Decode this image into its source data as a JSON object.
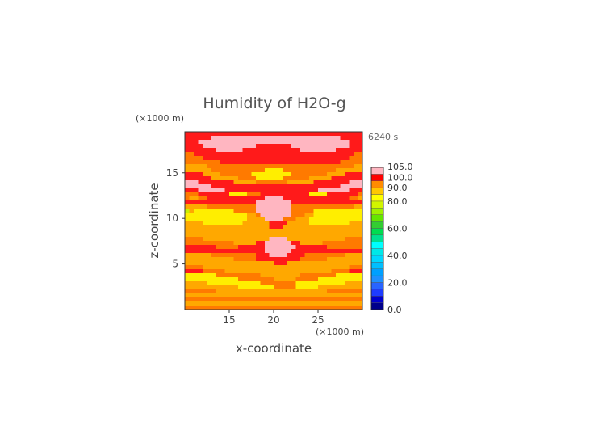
{
  "chart_data": {
    "type": "heatmap",
    "title": "Humidity of H2O-g",
    "time_label": "6240 s",
    "xlabel": "x-coordinate",
    "ylabel": "z-coordinate",
    "x_unit": "(×1000 m)",
    "y_unit": "(×1000 m)",
    "xlim": [
      10,
      30
    ],
    "ylim": [
      0,
      19.5
    ],
    "x_ticks": [
      "15",
      "20",
      "25"
    ],
    "y_ticks": [
      "5",
      "10",
      "15"
    ],
    "x_tick_values": [
      15,
      20,
      25
    ],
    "y_tick_values": [
      5,
      10,
      15
    ],
    "colorbar": {
      "labels": [
        "105.0",
        "100.0",
        "90.0",
        "80.0",
        "60.0",
        "40.0",
        "20.0",
        "0.0"
      ],
      "label_values": [
        105,
        100,
        90,
        80,
        60,
        40,
        20,
        0
      ],
      "range": [
        0,
        105
      ],
      "levels": [
        {
          "min": 0,
          "max": 5,
          "color": "#00008b"
        },
        {
          "min": 5,
          "max": 10,
          "color": "#0000cd"
        },
        {
          "min": 10,
          "max": 15,
          "color": "#1e3cff"
        },
        {
          "min": 15,
          "max": 20,
          "color": "#2864ff"
        },
        {
          "min": 20,
          "max": 25,
          "color": "#1e90ff"
        },
        {
          "min": 25,
          "max": 30,
          "color": "#00a0ff"
        },
        {
          "min": 30,
          "max": 35,
          "color": "#00bfff"
        },
        {
          "min": 35,
          "max": 40,
          "color": "#00d7ff"
        },
        {
          "min": 40,
          "max": 45,
          "color": "#00e8e8"
        },
        {
          "min": 45,
          "max": 50,
          "color": "#00ffff"
        },
        {
          "min": 50,
          "max": 55,
          "color": "#00e090"
        },
        {
          "min": 55,
          "max": 60,
          "color": "#00dc50"
        },
        {
          "min": 60,
          "max": 65,
          "color": "#32cd32"
        },
        {
          "min": 65,
          "max": 70,
          "color": "#64e600"
        },
        {
          "min": 70,
          "max": 75,
          "color": "#a0f000"
        },
        {
          "min": 75,
          "max": 80,
          "color": "#d2f500"
        },
        {
          "min": 80,
          "max": 85,
          "color": "#ffff00"
        },
        {
          "min": 85,
          "max": 90,
          "color": "#ffc800"
        },
        {
          "min": 90,
          "max": 95,
          "color": "#ff8c00"
        },
        {
          "min": 95,
          "max": 100,
          "color": "#ff0000"
        },
        {
          "min": 100,
          "max": 105,
          "color": "#ffb6c1"
        }
      ]
    },
    "cell_shades": {
      "ge100": "#ffb6c1",
      "95_100": "#ff1a1a",
      "90_95": "#ff7a00",
      "85_90": "#ffa800",
      "80_85": "#ffee00",
      "75_80": "#c8f000"
    },
    "grid_cols": 40,
    "grid_rows": 44,
    "humidity_rows_top_to_bottom": [
      "RRRRRRRRRRRRRRRRRRRRRRRRRRRRRRRRRRRRRRRR",
      "RRRRRRPPPPPPPPPPPPPPPPPPPPPPPPPPPPPRRRRR",
      "RRRPPPPPPPPPPPPPPPPPPPPPPPPPPPPPPPPPPRRR",
      "RRRRPPPPPPPPPPPPRRRRRRRRPPPPPPPPPPPPPRRR",
      "RRRRRRRPPPPPPRRRRRRRRRRRRRPPPPPPPPRRRRRR",
      "OORRRRRRRRRRRRRRRRRRRRRRRRRRRRRRRRRRRROO",
      "OOOORRRRRRRRRRRRRRRRRRRRRRRRRRRRRRRRROOO",
      "OOOOOOOORRRRRRRRRRRRRRRRRRRRRRRRRRROOOOO",
      "AAAAAOOOOOOOOOOOOOOOOOOOOOOOOOOOOOOOOOAA",
      "AAAAAAOOOOOOOOOOOOYYYYOOOOOOOOOOOOAAAAAA",
      "RRRRAAAAOOOOOOOYYYYYYYYYOOOOOOOOAAAARRRR",
      "RRRRRRAAAAAAOOOOYYYYYYOOOOOOAAAAARRRRRRR",
      "PPPRRRRRRRRAAAAAOOOOOOOAAAAAARRRRRRRRPPP",
      "PPPPPPRRRRRRRRRRRRRRRRRRRRRRRRRRRRRPPPPP",
      "RRRPPPPPPRRRRRRRRRRRRRRRRRRRRRPPPPPPPRRR",
      "OOORRRRRRRYYYYOOORRRRRRRRRRRYYYYRRRRRRRO",
      "OAAOORRRRRRRRRRRRRPPPPRRRRRRRRRRRRRRROOA",
      "RRRRRRRRRRRRRRRRPPPPPPPPRRRRRRRRRRRRRRRR",
      "AAAAAOOOOOOOOOOOPPPPPPPPOOOOOOOOOOOOOOAA",
      "GAYYYYYYYYYOOOOOPPPPPPPPOOOOOYYYYYYYYYYY",
      "YYYYYYYYYYYYYYAAOPPPPPPPOOOAAYYYYYYYYYYY",
      "YYYYYYYYYYYYYYAAAAPPPPOOOAAAYYYYYYYYYYYY",
      "AAAAYYYYYYYYYAAAAAARRRRAAAAAYYYYYYYYYAAA",
      "AAAAAAAAAAAAAAAAAAARRRAAAAAAAAAAAAAAAAAA",
      "AAAAAAAAAAAAAAAAAAAAAAAAAAAAAAAAAAAAAAAA",
      "AAAAAAAAAAAAAAAAAAAAAAAAAAAAAAAAAAAAAAAA",
      "OOOOAAAAAAAAAAAAAAAPPPPAAAAAAAAAAAAAOOOO",
      "OOOOOOOOOOOAAAAARRPPPPPPRRAAAAAOOOOOOOOO",
      "RRRRRRROOOOORRRRRRPPPPPPPRRRRRRROOOOOOOO",
      "RRRRRRRRRRRRRRRRRRPPPPPPRRRRRRRRRRRRRRRR",
      "AAAAAAOOOOOOOOOORRRPPPPRRRROOOOOOOOOAAAA",
      "AAAAAAAAAAAOOOOORRRRRRRRRROOOOOOAAAAAAAA",
      "AAAAAAAAAAAAAAAAAAAARRRAAAAAAAAAAAAAAAAA",
      "OOOOAAAAAAAAAAAAAAAAAAAAAAAAAAAAAAAAAOOO",
      "RRRROOOOOAAAAAAAAAAAAAAAAAAAAAAAAOOOORRR",
      "YYYYYYYOOOOOOOOOOAAAAAAAAAOOOOOOOOYYYYYY",
      "YYYYYYYYYYYYOOOOOOOOAAAAAOOOOOYYYYYYYYYY",
      "AAAAAYYYYYYYYYYYYOOOOOOOOYYYYYYYYYYYAAAA",
      "AAAAAAAAAAAAYYYYYYYYOOOOOYYYYYAAAAAAAAAA",
      "OOOOOOOAAAAAAAAAAAAAAAAAAAAAAAAAOOOOOOOO",
      "AAAAAAAAAAAAAAAAAAAAAAAAAAAAAAAAAAAAAAAA",
      "OOOOOOOOOOOOOOOOOOOOOOOOOOOOOOOOOOOOOOOO",
      "AAAAAAAAAAAAAAAAAAAAAAAAAAAAAAAAAAAAAAAA",
      "OOOOOOOOOOOOOOOOOOOOOOOOOOOOOOOOOOOOOOOO"
    ],
    "humidity_code_key": {
      "P": "≥100",
      "R": "95–100",
      "O": "90–95",
      "A": "85–90",
      "Y": "80–85",
      "G": "75–80"
    }
  }
}
